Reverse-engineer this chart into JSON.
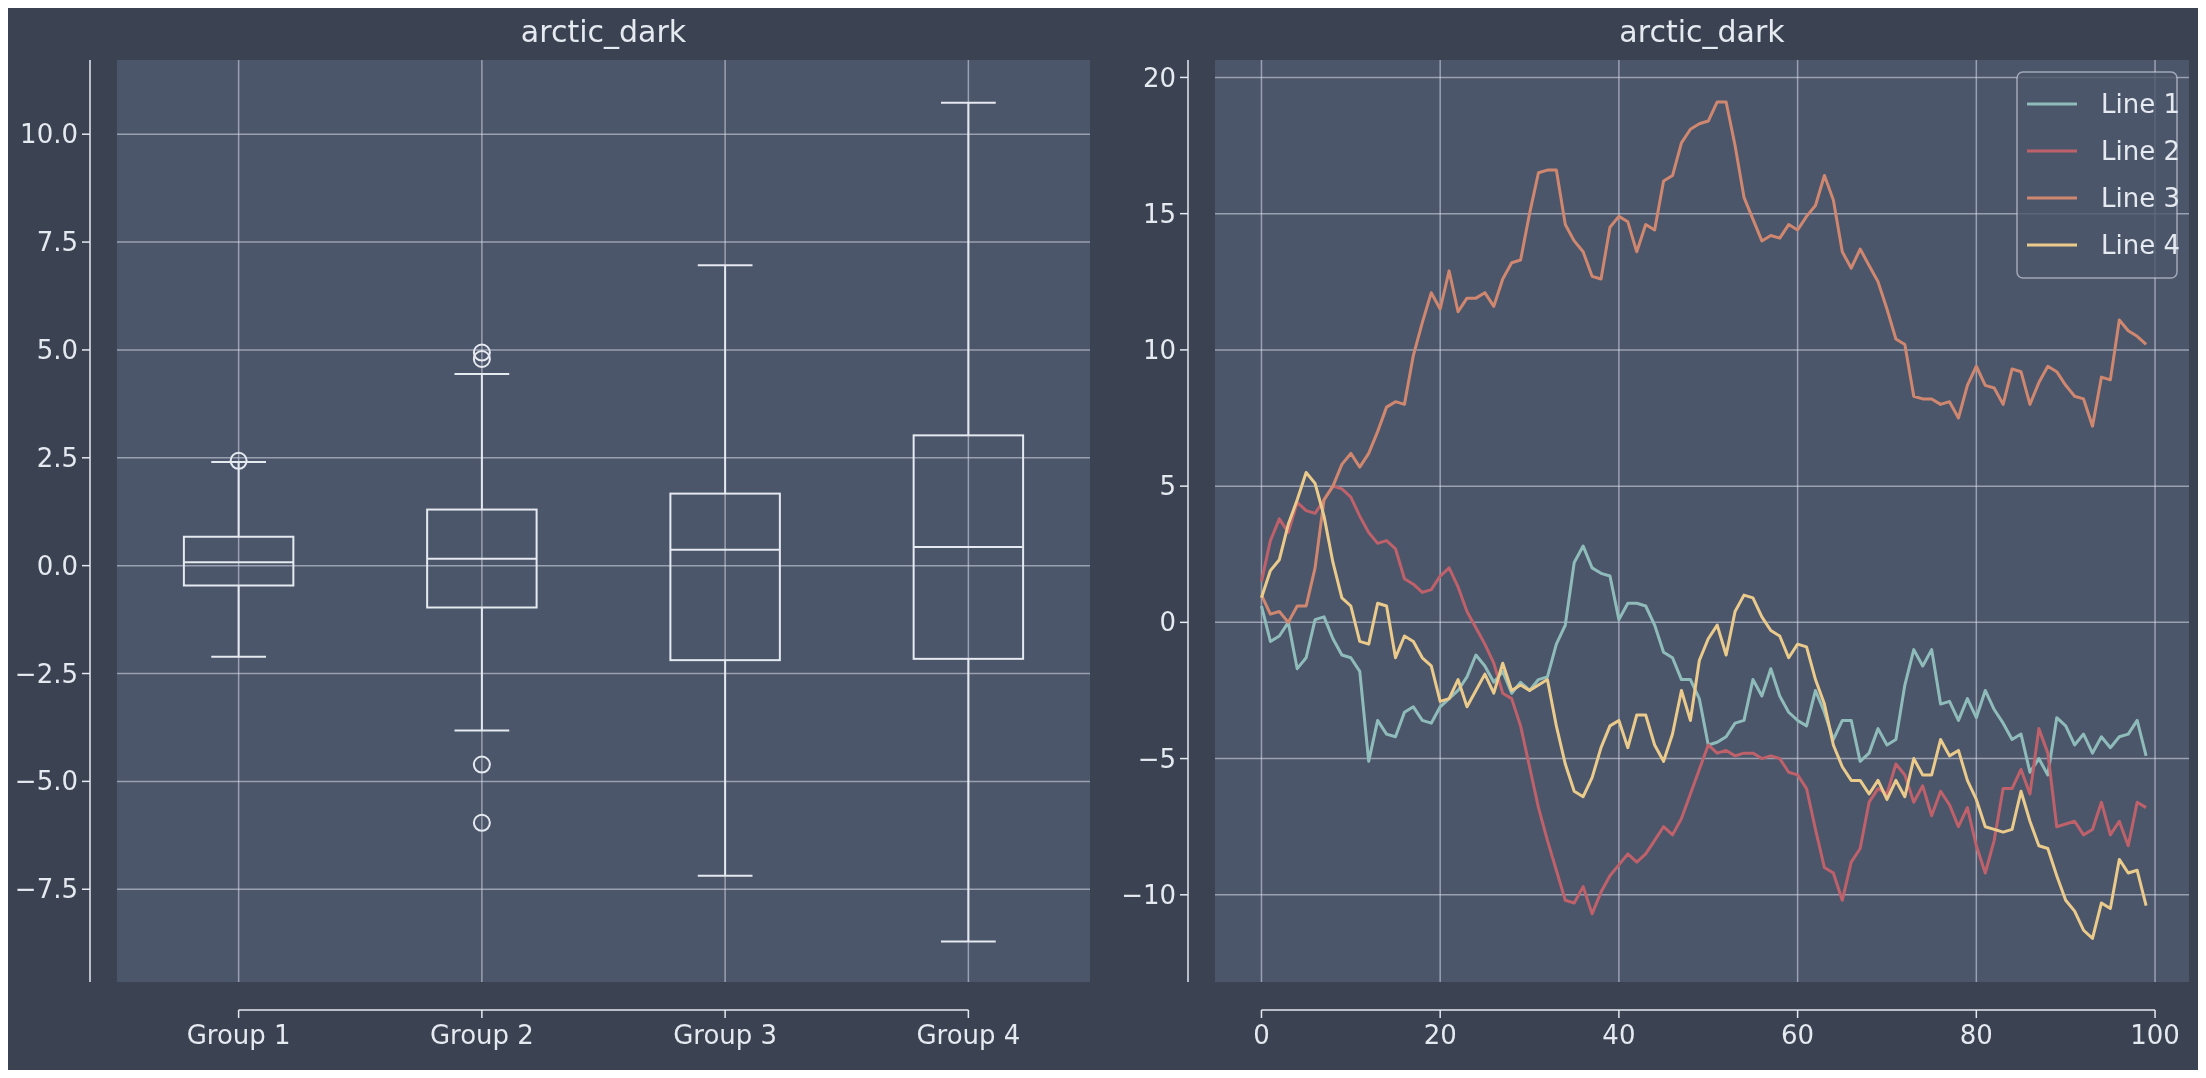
{
  "chart_data": [
    {
      "type": "box",
      "title": "arctic_dark",
      "categories": [
        "Group 1",
        "Group 2",
        "Group 3",
        "Group 4"
      ],
      "boxes": [
        {
          "low": -2.11,
          "q1": -0.46,
          "median": 0.08,
          "q3": 0.67,
          "high": 2.4,
          "outliers": [
            2.43
          ]
        },
        {
          "low": -3.82,
          "q1": -0.97,
          "median": 0.16,
          "q3": 1.3,
          "high": 4.44,
          "outliers": [
            4.94,
            4.79,
            -4.61,
            -5.96
          ]
        },
        {
          "low": -7.19,
          "q1": -2.19,
          "median": 0.37,
          "q3": 1.67,
          "high": 6.96
        },
        {
          "low": -8.71,
          "q1": -2.16,
          "median": 0.43,
          "q3": 3.02,
          "high": 10.73
        }
      ],
      "color": "#e5e9f0",
      "ylim": [
        -9.65,
        11.72
      ],
      "yticks": [
        {
          "value": -7.5,
          "label": "−7.5"
        },
        {
          "value": -5,
          "label": "−5.0"
        },
        {
          "value": -2.5,
          "label": "−2.5"
        },
        {
          "value": 0,
          "label": "0.0"
        },
        {
          "value": 2.5,
          "label": "2.5"
        },
        {
          "value": 5,
          "label": "5.0"
        },
        {
          "value": 7.5,
          "label": "7.5"
        },
        {
          "value": 10,
          "label": "10.0"
        }
      ],
      "grid": true
    },
    {
      "type": "line",
      "title": "arctic_dark",
      "x": [
        0,
        1,
        2,
        3,
        4,
        5,
        6,
        7,
        8,
        9,
        10,
        11,
        12,
        13,
        14,
        15,
        16,
        17,
        18,
        19,
        20,
        21,
        22,
        23,
        24,
        25,
        26,
        27,
        28,
        29,
        30,
        31,
        32,
        33,
        34,
        35,
        36,
        37,
        38,
        39,
        40,
        41,
        42,
        43,
        44,
        45,
        46,
        47,
        48,
        49,
        50,
        51,
        52,
        53,
        54,
        55,
        56,
        57,
        58,
        59,
        60,
        61,
        62,
        63,
        64,
        65,
        66,
        67,
        68,
        69,
        70,
        71,
        72,
        73,
        74,
        75,
        76,
        77,
        78,
        79,
        80,
        81,
        82,
        83,
        84,
        85,
        86,
        87,
        88,
        89,
        90,
        91,
        92,
        93,
        94,
        95,
        96,
        97,
        98,
        99
      ],
      "series": [
        {
          "name": "Line 1",
          "color": "#8fbcbb",
          "values": [
            0.6,
            -0.7,
            -0.5,
            0.0,
            -1.7,
            -1.3,
            0.1,
            0.2,
            -0.6,
            -1.2,
            -1.3,
            -1.8,
            -5.1,
            -3.6,
            -4.1,
            -4.2,
            -3.3,
            -3.1,
            -3.6,
            -3.7,
            -3.1,
            -2.8,
            -2.5,
            -2.0,
            -1.2,
            -1.6,
            -2.2,
            -1.8,
            -2.6,
            -2.2,
            -2.5,
            -2.1,
            -2.0,
            -0.8,
            -0.1,
            2.2,
            2.8,
            2.0,
            1.8,
            1.7,
            0.1,
            0.7,
            0.7,
            0.6,
            -0.1,
            -1.1,
            -1.3,
            -2.1,
            -2.1,
            -2.8,
            -4.5,
            -4.4,
            -4.2,
            -3.7,
            -3.6,
            -2.1,
            -2.7,
            -1.7,
            -2.7,
            -3.3,
            -3.6,
            -3.8,
            -2.5,
            -3.3,
            -4.3,
            -3.6,
            -3.6,
            -5.1,
            -4.8,
            -3.9,
            -4.5,
            -4.3,
            -2.3,
            -1.0,
            -1.6,
            -1.0,
            -3.0,
            -2.9,
            -3.6,
            -2.8,
            -3.5,
            -2.5,
            -3.2,
            -3.7,
            -4.3,
            -4.1,
            -5.5,
            -5.0,
            -5.6,
            -3.5,
            -3.8,
            -4.5,
            -4.1,
            -4.8,
            -4.2,
            -4.6,
            -4.2,
            -4.1,
            -3.6,
            -4.9
          ]
        },
        {
          "name": "Line 2",
          "color": "#bf616a",
          "values": [
            1.5,
            3.0,
            3.8,
            3.3,
            4.4,
            4.1,
            4.0,
            4.5,
            5.0,
            4.9,
            4.6,
            3.9,
            3.3,
            2.9,
            3.0,
            2.7,
            1.6,
            1.4,
            1.1,
            1.2,
            1.7,
            2.0,
            1.3,
            0.4,
            -0.2,
            -0.8,
            -1.5,
            -2.6,
            -2.8,
            -3.8,
            -5.3,
            -6.8,
            -8.0,
            -9.1,
            -10.2,
            -10.3,
            -9.7,
            -10.7,
            -9.9,
            -9.3,
            -8.9,
            -8.5,
            -8.8,
            -8.5,
            -8.0,
            -7.5,
            -7.8,
            -7.2,
            -6.3,
            -5.4,
            -4.5,
            -4.8,
            -4.7,
            -4.9,
            -4.8,
            -4.8,
            -5.0,
            -4.9,
            -5.0,
            -5.5,
            -5.6,
            -6.1,
            -7.6,
            -9.0,
            -9.2,
            -10.2,
            -8.8,
            -8.3,
            -6.6,
            -6.1,
            -6.3,
            -5.2,
            -5.6,
            -6.6,
            -6.0,
            -7.1,
            -6.2,
            -6.7,
            -7.5,
            -6.8,
            -8.2,
            -9.2,
            -8.0,
            -6.1,
            -6.1,
            -5.4,
            -6.3,
            -3.9,
            -4.8,
            -7.5,
            -7.4,
            -7.3,
            -7.8,
            -7.6,
            -6.6,
            -7.8,
            -7.3,
            -8.2,
            -6.6,
            -6.8
          ]
        },
        {
          "name": "Line 3",
          "color": "#d08770",
          "values": [
            1.0,
            0.3,
            0.4,
            0.0,
            0.6,
            0.6,
            2.0,
            4.5,
            5.0,
            5.8,
            6.2,
            5.7,
            6.2,
            7.0,
            7.9,
            8.1,
            8.0,
            9.8,
            11.0,
            12.1,
            11.5,
            12.9,
            11.4,
            11.9,
            11.9,
            12.1,
            11.6,
            12.6,
            13.2,
            13.3,
            15.0,
            16.5,
            16.6,
            16.6,
            14.6,
            14.0,
            13.6,
            12.7,
            12.6,
            14.5,
            14.9,
            14.7,
            13.6,
            14.6,
            14.4,
            16.2,
            16.4,
            17.6,
            18.1,
            18.3,
            18.4,
            19.1,
            19.1,
            17.5,
            15.6,
            14.8,
            14.0,
            14.2,
            14.1,
            14.6,
            14.4,
            14.9,
            15.3,
            16.4,
            15.5,
            13.6,
            13.0,
            13.7,
            13.1,
            12.5,
            11.5,
            10.4,
            10.2,
            8.3,
            8.2,
            8.2,
            8.0,
            8.1,
            7.5,
            8.7,
            9.4,
            8.7,
            8.6,
            8.0,
            9.3,
            9.2,
            8.0,
            8.8,
            9.4,
            9.2,
            8.7,
            8.3,
            8.2,
            7.2,
            9.0,
            8.9,
            11.1,
            10.7,
            10.5,
            10.2
          ]
        },
        {
          "name": "Line 4",
          "color": "#ebcb8b",
          "values": [
            0.9,
            1.9,
            2.3,
            3.6,
            4.5,
            5.5,
            5.1,
            3.9,
            2.2,
            0.9,
            0.6,
            -0.7,
            -0.8,
            0.7,
            0.6,
            -1.3,
            -0.5,
            -0.7,
            -1.3,
            -1.6,
            -2.9,
            -2.8,
            -2.1,
            -3.1,
            -2.5,
            -1.9,
            -2.6,
            -1.5,
            -2.5,
            -2.3,
            -2.5,
            -2.3,
            -2.1,
            -3.8,
            -5.2,
            -6.2,
            -6.4,
            -5.7,
            -4.6,
            -3.8,
            -3.6,
            -4.6,
            -3.4,
            -3.4,
            -4.5,
            -5.1,
            -4.1,
            -2.5,
            -3.6,
            -1.4,
            -0.6,
            -0.1,
            -1.2,
            0.4,
            1.0,
            0.9,
            0.2,
            -0.3,
            -0.5,
            -1.3,
            -0.8,
            -0.9,
            -2.1,
            -3.0,
            -4.5,
            -5.3,
            -5.8,
            -5.8,
            -6.3,
            -5.8,
            -6.5,
            -5.8,
            -6.4,
            -5.0,
            -5.6,
            -5.6,
            -4.3,
            -4.9,
            -4.7,
            -5.8,
            -6.5,
            -7.5,
            -7.6,
            -7.7,
            -7.6,
            -6.2,
            -7.3,
            -8.2,
            -8.3,
            -9.3,
            -10.2,
            -10.6,
            -11.3,
            -11.6,
            -10.3,
            -10.5,
            -8.7,
            -9.2,
            -9.1,
            -10.4
          ]
        }
      ],
      "xlim": [
        -5.2,
        103.8
      ],
      "ylim": [
        -13.2,
        20.64
      ],
      "xticks": [
        0,
        20,
        40,
        60,
        80,
        100
      ],
      "yticks": [
        {
          "value": -10,
          "label": "−10"
        },
        {
          "value": -5,
          "label": "−5"
        },
        0,
        5,
        10,
        15,
        20
      ],
      "grid": true,
      "legend": "top right"
    }
  ]
}
